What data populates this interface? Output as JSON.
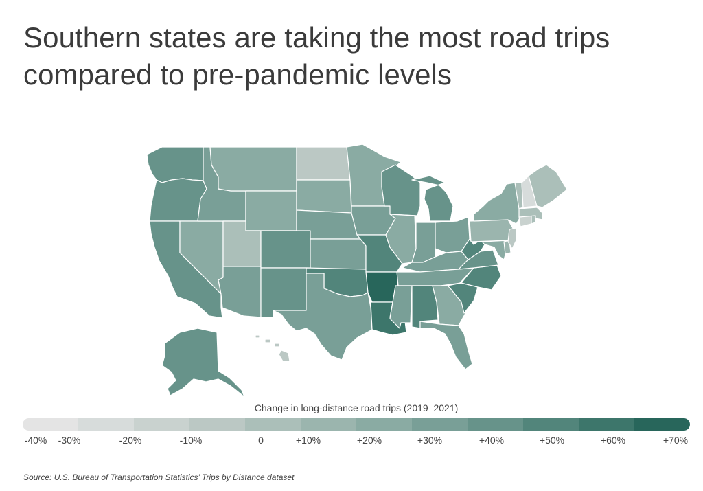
{
  "title": "Southern states are taking the most road trips compared to pre-pandemic levels",
  "legend": {
    "title": "Change in long-distance road trips (2019–2021)",
    "ticks": [
      "-40%",
      "-30%",
      "-20%",
      "-10%",
      "0",
      "+10%",
      "+20%",
      "+30%",
      "+40%",
      "+50%",
      "+60%",
      "+70%"
    ],
    "colors": [
      "#e4e4e4",
      "#d7dcdb",
      "#c9d2cf",
      "#bbc8c4",
      "#abbfb9",
      "#9bb5ae",
      "#8aaba3",
      "#799f97",
      "#67938a",
      "#52857b",
      "#3d766b",
      "#28665b"
    ]
  },
  "source": "Source:  U.S. Bureau of Transportation Statistics’ Trips by Distance dataset",
  "states": [
    {
      "id": "WA",
      "name": "Washington",
      "change": 35
    },
    {
      "id": "OR",
      "name": "Oregon",
      "change": 35
    },
    {
      "id": "CA",
      "name": "California",
      "change": 35
    },
    {
      "id": "NV",
      "name": "Nevada",
      "change": 15
    },
    {
      "id": "ID",
      "name": "Idaho",
      "change": 25
    },
    {
      "id": "MT",
      "name": "Montana",
      "change": 15
    },
    {
      "id": "WY",
      "name": "Wyoming",
      "change": 15
    },
    {
      "id": "UT",
      "name": "Utah",
      "change": -5
    },
    {
      "id": "AZ",
      "name": "Arizona",
      "change": 25
    },
    {
      "id": "CO",
      "name": "Colorado",
      "change": 35
    },
    {
      "id": "NM",
      "name": "New Mexico",
      "change": 35
    },
    {
      "id": "ND",
      "name": "North Dakota",
      "change": -10
    },
    {
      "id": "SD",
      "name": "South Dakota",
      "change": 15
    },
    {
      "id": "NE",
      "name": "Nebraska",
      "change": 25
    },
    {
      "id": "KS",
      "name": "Kansas",
      "change": 25
    },
    {
      "id": "OK",
      "name": "Oklahoma",
      "change": 45
    },
    {
      "id": "TX",
      "name": "Texas",
      "change": 30
    },
    {
      "id": "MN",
      "name": "Minnesota",
      "change": 20
    },
    {
      "id": "IA",
      "name": "Iowa",
      "change": 30
    },
    {
      "id": "MO",
      "name": "Missouri",
      "change": 45
    },
    {
      "id": "AR",
      "name": "Arkansas",
      "change": 65
    },
    {
      "id": "LA",
      "name": "Louisiana",
      "change": 55
    },
    {
      "id": "WI",
      "name": "Wisconsin",
      "change": 35
    },
    {
      "id": "IL",
      "name": "Illinois",
      "change": 20
    },
    {
      "id": "MI",
      "name": "Michigan",
      "change": 40
    },
    {
      "id": "IN",
      "name": "Indiana",
      "change": 25
    },
    {
      "id": "OH",
      "name": "Ohio",
      "change": 25
    },
    {
      "id": "KY",
      "name": "Kentucky",
      "change": 25
    },
    {
      "id": "TN",
      "name": "Tennessee",
      "change": 30
    },
    {
      "id": "MS",
      "name": "Mississippi",
      "change": 30
    },
    {
      "id": "AL",
      "name": "Alabama",
      "change": 45
    },
    {
      "id": "GA",
      "name": "Georgia",
      "change": 20
    },
    {
      "id": "FL",
      "name": "Florida",
      "change": 30
    },
    {
      "id": "SC",
      "name": "South Carolina",
      "change": 45
    },
    {
      "id": "NC",
      "name": "North Carolina",
      "change": 45
    },
    {
      "id": "VA",
      "name": "Virginia",
      "change": 35
    },
    {
      "id": "WV",
      "name": "West Virginia",
      "change": 45
    },
    {
      "id": "PA",
      "name": "Pennsylvania",
      "change": 10
    },
    {
      "id": "NY",
      "name": "New York",
      "change": 20
    },
    {
      "id": "MD",
      "name": "Maryland",
      "change": 15
    },
    {
      "id": "DE",
      "name": "Delaware",
      "change": 5
    },
    {
      "id": "NJ",
      "name": "New Jersey",
      "change": -10
    },
    {
      "id": "CT",
      "name": "Connecticut",
      "change": -20
    },
    {
      "id": "RI",
      "name": "Rhode Island",
      "change": 0
    },
    {
      "id": "MA",
      "name": "Massachusetts",
      "change": -5
    },
    {
      "id": "VT",
      "name": "Vermont",
      "change": -5
    },
    {
      "id": "NH",
      "name": "New Hampshire",
      "change": -30
    },
    {
      "id": "ME",
      "name": "Maine",
      "change": 0
    },
    {
      "id": "AK",
      "name": "Alaska",
      "change": 35
    },
    {
      "id": "HI",
      "name": "Hawaii",
      "change": -10
    }
  ]
}
